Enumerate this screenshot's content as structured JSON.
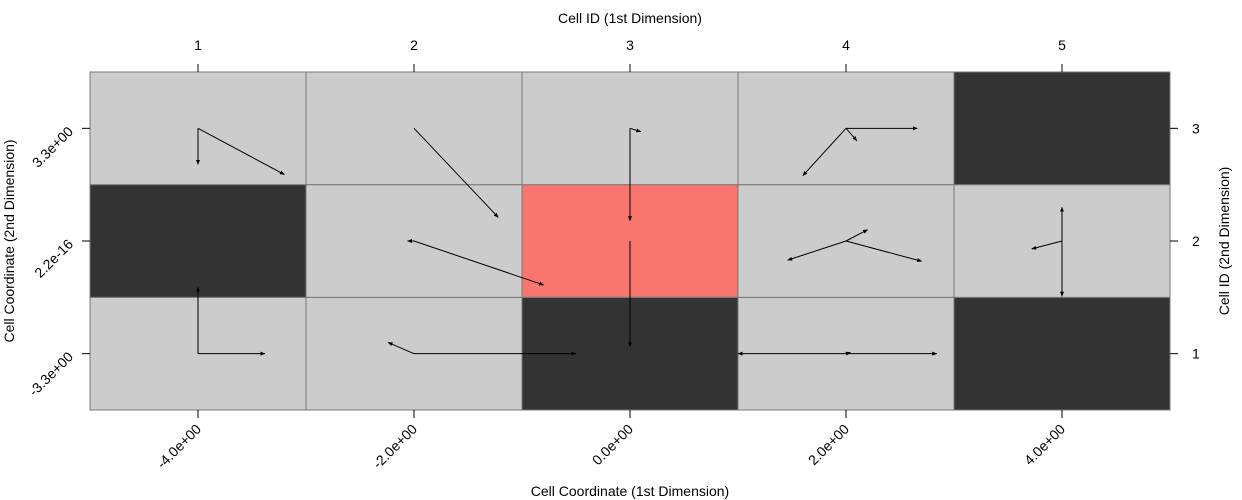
{
  "chart_data": {
    "type": "heatmap",
    "bottom_axis_title": "Cell Coordinate (1st Dimension)",
    "top_axis_title": "Cell ID (1st Dimension)",
    "left_axis_title": "Cell Coordinate (2nd Dimension)",
    "right_axis_title": "Cell ID (2nd Dimension)",
    "x_coordinate_labels": [
      "-4.0e+00",
      "-2.0e+00",
      "0.0e+00",
      "2.0e+00",
      "4.0e+00"
    ],
    "y_coordinate_labels": [
      "-3.3e+00",
      "2.2e-16",
      "3.3e+00"
    ],
    "x_ids": [
      "1",
      "2",
      "3",
      "4",
      "5"
    ],
    "y_ids": [
      "1",
      "2",
      "3"
    ],
    "colors": {
      "valid": "#cccccc",
      "blocked": "#333333",
      "highlight": "#f8766d",
      "border": "#777777"
    },
    "cells": [
      [
        "valid",
        "valid",
        "blocked",
        "valid",
        "blocked"
      ],
      [
        "blocked",
        "valid",
        "highlight",
        "valid",
        "valid"
      ],
      [
        "valid",
        "valid",
        "valid",
        "valid",
        "blocked"
      ]
    ],
    "arrows": [
      {
        "x1": 1,
        "y1": 3,
        "x2": 1,
        "y2": 2.68
      },
      {
        "x1": 1,
        "y1": 3,
        "x2": 1.4,
        "y2": 2.59
      },
      {
        "x1": 2,
        "y1": 3,
        "x2": 2.39,
        "y2": 2.21
      },
      {
        "x1": 3,
        "y1": 3,
        "x2": 3.05,
        "y2": 2.97
      },
      {
        "x1": 3,
        "y1": 3,
        "x2": 3,
        "y2": 2.18
      },
      {
        "x1": 4,
        "y1": 3,
        "x2": 4.33,
        "y2": 3
      },
      {
        "x1": 4,
        "y1": 3,
        "x2": 4.05,
        "y2": 2.89
      },
      {
        "x1": 4,
        "y1": 3,
        "x2": 3.8,
        "y2": 2.58
      },
      {
        "x1": 1,
        "y1": 1,
        "x2": 1,
        "y2": 1.59
      },
      {
        "x1": 1,
        "y1": 1,
        "x2": 1.31,
        "y2": 1
      },
      {
        "x1": 2,
        "y1": 2,
        "x2": 1.97,
        "y2": 2
      },
      {
        "x1": 2,
        "y1": 2,
        "x2": 2.6,
        "y2": 1.61
      },
      {
        "x1": 3,
        "y1": 2,
        "x2": 3,
        "y2": 1.06
      },
      {
        "x1": 4,
        "y1": 2,
        "x2": 4.1,
        "y2": 2.1
      },
      {
        "x1": 4,
        "y1": 2,
        "x2": 3.73,
        "y2": 1.83
      },
      {
        "x1": 4,
        "y1": 2,
        "x2": 4.35,
        "y2": 1.82
      },
      {
        "x1": 5,
        "y1": 2,
        "x2": 4.86,
        "y2": 1.93
      },
      {
        "x1": 5,
        "y1": 2,
        "x2": 5,
        "y2": 2.3
      },
      {
        "x1": 5,
        "y1": 2,
        "x2": 5,
        "y2": 1.51
      },
      {
        "x1": 2,
        "y1": 1,
        "x2": 1.88,
        "y2": 1.1
      },
      {
        "x1": 2,
        "y1": 1,
        "x2": 2.75,
        "y2": 1
      },
      {
        "x1": 4,
        "y1": 1,
        "x2": 3.5,
        "y2": 1
      },
      {
        "x1": 4,
        "y1": 1,
        "x2": 4.42,
        "y2": 1
      },
      {
        "x1": 4,
        "y1": 1,
        "x2": 4.02,
        "y2": 1.01
      }
    ]
  }
}
